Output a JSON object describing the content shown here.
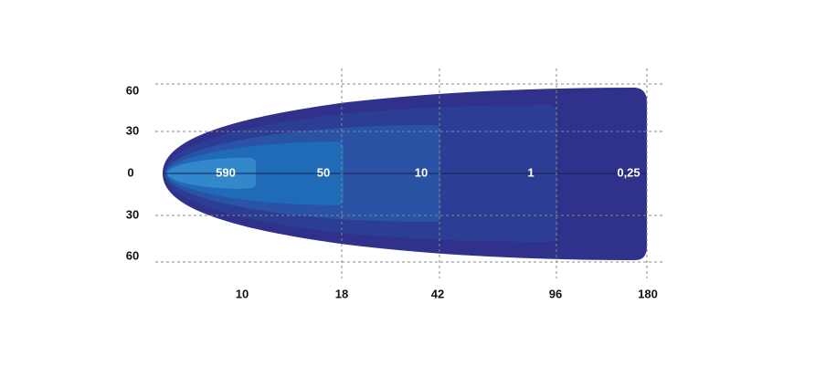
{
  "y_axis": {
    "labels": [
      "60",
      "30",
      "0",
      "30",
      "60"
    ]
  },
  "x_axis": {
    "labels": [
      "10",
      "18",
      "42",
      "96",
      "180"
    ]
  },
  "zones": {
    "labels": [
      "590",
      "50",
      "10",
      "1",
      "0,25"
    ]
  }
}
